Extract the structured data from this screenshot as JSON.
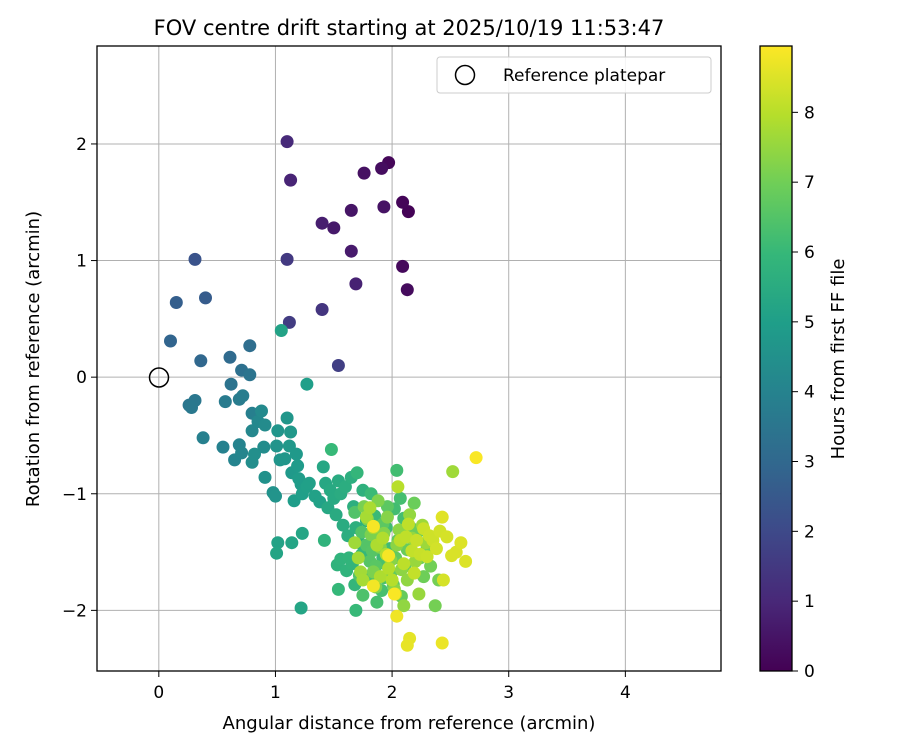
{
  "chart_data": {
    "type": "scatter",
    "title": "FOV centre drift starting at 2025/10/19 11:53:47",
    "xlabel": "Angular distance from reference (arcmin)",
    "ylabel": "Rotation from reference (arcmin)",
    "xlim": [
      -0.53,
      4.82
    ],
    "ylim": [
      -2.52,
      2.84
    ],
    "xticks": [
      0,
      1,
      2,
      3,
      4
    ],
    "xtick_labels": [
      "0",
      "1",
      "2",
      "3",
      "4"
    ],
    "yticks": [
      -2,
      -1,
      0,
      1,
      2
    ],
    "ytick_labels": [
      "−2",
      "−1",
      "0",
      "1",
      "2"
    ],
    "grid": true,
    "legend": {
      "label": "Reference platepar",
      "position": "top-right"
    },
    "reference_point": {
      "x": 0,
      "y": 0
    },
    "colorbar": {
      "label": "Hours from first FF file",
      "range": [
        0,
        8.95
      ],
      "ticks": [
        0,
        1,
        2,
        3,
        4,
        5,
        6,
        7,
        8
      ],
      "tick_labels": [
        "0",
        "1",
        "2",
        "3",
        "4",
        "5",
        "6",
        "7",
        "8"
      ]
    },
    "points": [
      [
        2.14,
        1.42,
        0.05
      ],
      [
        2.09,
        1.5,
        0.1
      ],
      [
        1.97,
        1.84,
        0.15
      ],
      [
        2.09,
        0.95,
        0.2
      ],
      [
        2.13,
        0.75,
        0.25
      ],
      [
        1.91,
        1.79,
        0.3
      ],
      [
        1.76,
        1.75,
        0.4
      ],
      [
        1.93,
        1.46,
        0.45
      ],
      [
        1.65,
        1.43,
        0.5
      ],
      [
        1.5,
        1.28,
        0.6
      ],
      [
        1.65,
        1.08,
        0.65
      ],
      [
        1.4,
        1.32,
        0.75
      ],
      [
        1.69,
        0.8,
        0.85
      ],
      [
        1.13,
        1.69,
        0.9
      ],
      [
        1.1,
        2.02,
        1.05
      ],
      [
        1.4,
        0.58,
        1.4
      ],
      [
        1.54,
        0.1,
        1.7
      ],
      [
        1.1,
        1.01,
        1.5
      ],
      [
        1.12,
        0.47,
        1.6
      ],
      [
        0.31,
        1.01,
        2.3
      ],
      [
        0.4,
        0.68,
        2.6
      ],
      [
        0.15,
        0.64,
        2.7
      ],
      [
        0.1,
        0.31,
        2.9
      ],
      [
        0.36,
        0.14,
        3.0
      ],
      [
        0.61,
        0.17,
        3.1
      ],
      [
        0.78,
        0.27,
        3.2
      ],
      [
        0.71,
        0.06,
        3.3
      ],
      [
        0.62,
        -0.06,
        3.4
      ],
      [
        0.78,
        0.02,
        3.45
      ],
      [
        0.26,
        -0.24,
        3.5
      ],
      [
        0.31,
        -0.2,
        3.55
      ],
      [
        0.28,
        -0.26,
        3.6
      ],
      [
        0.57,
        -0.21,
        3.7
      ],
      [
        0.69,
        -0.19,
        3.75
      ],
      [
        0.72,
        -0.16,
        3.8
      ],
      [
        0.8,
        -0.31,
        3.85
      ],
      [
        0.38,
        -0.52,
        3.9
      ],
      [
        0.55,
        -0.6,
        3.95
      ],
      [
        0.69,
        -0.58,
        4.0
      ],
      [
        0.65,
        -0.71,
        4.05
      ],
      [
        0.71,
        -0.65,
        4.1
      ],
      [
        0.8,
        -0.46,
        4.15
      ],
      [
        0.85,
        -0.38,
        4.2
      ],
      [
        0.88,
        -0.29,
        4.25
      ],
      [
        0.91,
        -0.41,
        4.3
      ],
      [
        0.9,
        -0.6,
        4.35
      ],
      [
        0.8,
        -0.73,
        4.4
      ],
      [
        0.82,
        -0.66,
        4.45
      ],
      [
        0.91,
        -0.86,
        4.5
      ],
      [
        0.98,
        -0.99,
        4.55
      ],
      [
        1.0,
        -1.02,
        4.6
      ],
      [
        1.01,
        -0.59,
        4.6
      ],
      [
        1.02,
        -0.46,
        4.65
      ],
      [
        1.04,
        -0.71,
        4.65
      ],
      [
        1.08,
        -0.7,
        4.7
      ],
      [
        1.1,
        -0.35,
        4.7
      ],
      [
        1.13,
        -0.47,
        4.75
      ],
      [
        1.12,
        -0.59,
        4.75
      ],
      [
        1.14,
        -0.82,
        4.8
      ],
      [
        1.18,
        -0.66,
        4.8
      ],
      [
        1.19,
        -0.76,
        4.85
      ],
      [
        1.2,
        -0.87,
        4.9
      ],
      [
        1.22,
        -0.92,
        4.9
      ],
      [
        1.16,
        -1.06,
        4.95
      ],
      [
        1.23,
        -1.0,
        5.0
      ],
      [
        1.27,
        -0.06,
        5.0
      ],
      [
        1.27,
        -0.94,
        5.05
      ],
      [
        1.29,
        -0.91,
        5.05
      ],
      [
        1.34,
        -1.02,
        5.1
      ],
      [
        1.38,
        -1.07,
        5.1
      ],
      [
        1.05,
        0.4,
        5.15
      ],
      [
        1.02,
        -1.42,
        5.15
      ],
      [
        1.01,
        -1.51,
        5.2
      ],
      [
        1.14,
        -1.42,
        5.2
      ],
      [
        1.23,
        -1.34,
        5.25
      ],
      [
        1.22,
        -1.98,
        5.25
      ],
      [
        1.41,
        -0.77,
        5.3
      ],
      [
        1.43,
        -0.91,
        5.35
      ],
      [
        1.45,
        -1.12,
        5.35
      ],
      [
        1.47,
        -0.97,
        5.4
      ],
      [
        1.5,
        -1.04,
        5.4
      ],
      [
        1.52,
        -1.18,
        5.45
      ],
      [
        1.54,
        -0.89,
        5.45
      ],
      [
        1.56,
        -1.0,
        5.5
      ],
      [
        1.58,
        -1.27,
        5.5
      ],
      [
        1.6,
        -0.94,
        5.55
      ],
      [
        1.62,
        -1.36,
        5.55
      ],
      [
        1.65,
        -0.86,
        5.6
      ],
      [
        1.67,
        -1.11,
        5.6
      ],
      [
        1.69,
        -1.29,
        5.65
      ],
      [
        1.72,
        -1.42,
        5.65
      ],
      [
        1.75,
        -0.97,
        5.7
      ],
      [
        1.78,
        -1.23,
        5.7
      ],
      [
        1.42,
        -1.4,
        5.75
      ],
      [
        1.53,
        -1.61,
        5.75
      ],
      [
        1.56,
        -1.56,
        5.8
      ],
      [
        1.61,
        -1.66,
        5.8
      ],
      [
        1.63,
        -1.55,
        5.85
      ],
      [
        1.66,
        -1.6,
        5.85
      ],
      [
        1.68,
        -1.78,
        5.9
      ],
      [
        1.7,
        -0.82,
        5.9
      ],
      [
        1.74,
        -1.52,
        5.95
      ],
      [
        1.54,
        -1.82,
        5.95
      ],
      [
        1.69,
        -2.0,
        6.0
      ],
      [
        1.48,
        -0.62,
        6.0
      ],
      [
        1.82,
        -1.0,
        6.05
      ],
      [
        1.85,
        -1.19,
        6.05
      ],
      [
        1.88,
        -1.37,
        6.1
      ],
      [
        1.92,
        -1.55,
        6.1
      ],
      [
        1.95,
        -1.29,
        6.15
      ],
      [
        1.98,
        -1.47,
        6.15
      ],
      [
        2.02,
        -1.13,
        6.2
      ],
      [
        2.04,
        -0.8,
        6.2
      ],
      [
        2.07,
        -1.04,
        6.25
      ],
      [
        2.1,
        -1.21,
        6.25
      ],
      [
        1.87,
        -1.93,
        6.3
      ],
      [
        1.91,
        -1.83,
        6.3
      ],
      [
        1.93,
        -1.72,
        6.35
      ],
      [
        1.94,
        -1.6,
        6.35
      ],
      [
        1.8,
        -1.71,
        6.4
      ],
      [
        1.75,
        -1.87,
        6.4
      ],
      [
        1.72,
        -1.7,
        6.45
      ],
      [
        1.68,
        -1.16,
        6.45
      ],
      [
        1.74,
        -1.33,
        6.5
      ],
      [
        1.78,
        -1.44,
        6.5
      ],
      [
        1.81,
        -1.58,
        6.55
      ],
      [
        1.83,
        -1.49,
        6.55
      ],
      [
        1.86,
        -1.62,
        6.6
      ],
      [
        1.89,
        -1.4,
        6.6
      ],
      [
        1.92,
        -1.26,
        6.65
      ],
      [
        1.96,
        -1.11,
        6.65
      ],
      [
        1.99,
        -1.68,
        6.7
      ],
      [
        2.01,
        -1.78,
        6.7
      ],
      [
        2.03,
        -1.55,
        6.75
      ],
      [
        2.05,
        -1.4,
        6.75
      ],
      [
        2.08,
        -1.88,
        6.8
      ],
      [
        2.11,
        -1.62,
        6.8
      ],
      [
        2.13,
        -1.48,
        6.85
      ],
      [
        2.16,
        -1.29,
        6.85
      ],
      [
        2.19,
        -1.08,
        6.9
      ],
      [
        2.22,
        -1.33,
        6.9
      ],
      [
        2.24,
        -1.55,
        6.95
      ],
      [
        2.27,
        -1.71,
        6.95
      ],
      [
        2.3,
        -1.47,
        7.0
      ],
      [
        2.33,
        -1.62,
        7.0
      ],
      [
        2.37,
        -1.96,
        7.05
      ],
      [
        2.4,
        -1.74,
        7.05
      ],
      [
        1.76,
        -1.11,
        7.1
      ],
      [
        1.79,
        -1.22,
        7.1
      ],
      [
        1.82,
        -1.35,
        7.15
      ],
      [
        1.84,
        -1.67,
        7.15
      ],
      [
        1.86,
        -1.8,
        7.2
      ],
      [
        1.88,
        -1.06,
        7.2
      ],
      [
        1.9,
        -1.46,
        7.25
      ],
      [
        1.93,
        -1.34,
        7.25
      ],
      [
        1.96,
        -1.2,
        7.3
      ],
      [
        1.99,
        -1.57,
        7.3
      ],
      [
        2.02,
        -1.82,
        7.35
      ],
      [
        2.04,
        -1.44,
        7.35
      ],
      [
        2.06,
        -1.31,
        7.4
      ],
      [
        2.08,
        -1.65,
        7.4
      ],
      [
        2.1,
        -1.96,
        7.45
      ],
      [
        2.13,
        -1.74,
        7.45
      ],
      [
        2.15,
        -1.18,
        7.5
      ],
      [
        2.17,
        -1.38,
        7.5
      ],
      [
        2.2,
        -1.58,
        7.55
      ],
      [
        2.23,
        -1.86,
        7.55
      ],
      [
        2.26,
        -1.27,
        7.6
      ],
      [
        2.29,
        -1.42,
        7.6
      ],
      [
        2.52,
        -0.81,
        7.65
      ],
      [
        1.68,
        -1.42,
        7.65
      ],
      [
        1.71,
        -1.55,
        7.7
      ],
      [
        1.73,
        -1.67,
        7.7
      ],
      [
        1.75,
        -1.74,
        7.75
      ],
      [
        1.78,
        -1.2,
        7.75
      ],
      [
        1.81,
        -1.12,
        7.8
      ],
      [
        1.84,
        -1.29,
        7.8
      ],
      [
        1.87,
        -1.44,
        7.85
      ],
      [
        1.9,
        -1.71,
        7.85
      ],
      [
        1.92,
        -1.38,
        7.9
      ],
      [
        1.95,
        -1.52,
        7.9
      ],
      [
        1.97,
        -1.64,
        7.95
      ],
      [
        2.0,
        -1.74,
        7.95
      ],
      [
        2.03,
        -1.86,
        8.0
      ],
      [
        2.05,
        -0.94,
        8.0
      ],
      [
        2.07,
        -1.4,
        8.05
      ],
      [
        2.1,
        -1.6,
        8.05
      ],
      [
        2.12,
        -1.37,
        8.1
      ],
      [
        2.14,
        -1.26,
        8.1
      ],
      [
        2.17,
        -1.49,
        8.15
      ],
      [
        2.19,
        -1.68,
        8.15
      ],
      [
        2.21,
        -1.4,
        8.2
      ],
      [
        2.24,
        -1.52,
        8.2
      ],
      [
        2.27,
        -1.3,
        8.25
      ],
      [
        2.3,
        -1.54,
        8.25
      ],
      [
        2.32,
        -1.36,
        8.3
      ],
      [
        2.35,
        -1.4,
        8.3
      ],
      [
        2.38,
        -1.47,
        8.35
      ],
      [
        2.41,
        -1.32,
        8.35
      ],
      [
        2.44,
        -1.74,
        8.4
      ],
      [
        2.47,
        -1.37,
        8.4
      ],
      [
        2.51,
        -1.53,
        8.45
      ],
      [
        2.55,
        -1.5,
        8.45
      ],
      [
        2.59,
        -1.42,
        8.5
      ],
      [
        2.63,
        -1.58,
        8.5
      ],
      [
        2.43,
        -1.2,
        8.55
      ],
      [
        2.15,
        -2.24,
        8.6
      ],
      [
        2.13,
        -2.3,
        8.65
      ],
      [
        2.43,
        -2.28,
        8.7
      ],
      [
        2.04,
        -2.05,
        8.75
      ],
      [
        1.84,
        -1.79,
        8.8
      ],
      [
        1.97,
        -1.53,
        8.85
      ],
      [
        1.84,
        -1.28,
        8.85
      ],
      [
        2.72,
        -0.69,
        8.9
      ],
      [
        2.02,
        -1.86,
        8.9
      ]
    ]
  }
}
